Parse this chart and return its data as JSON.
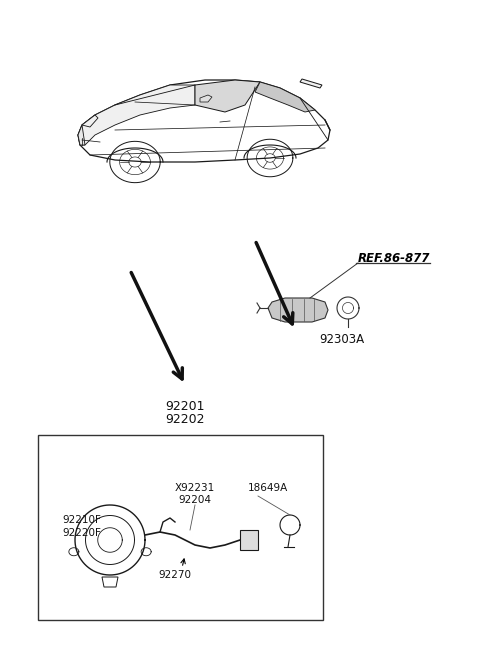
{
  "bg_color": "#ffffff",
  "fig_width": 4.8,
  "fig_height": 6.57,
  "dpi": 100,
  "ref_label": "REF.86-877",
  "label_92201": "92201",
  "label_92202": "92202",
  "label_92303A": "92303A",
  "label_X92231": "X92231",
  "label_92204": "92204",
  "label_18649A": "18649A",
  "label_92210F": "92210F",
  "label_92220F": "92220F",
  "label_92270": "92270",
  "car_color": "#1a1a1a",
  "arrow_color": "#111111",
  "box_color": "#333333",
  "text_color": "#111111",
  "ref_text_color": "#000000"
}
